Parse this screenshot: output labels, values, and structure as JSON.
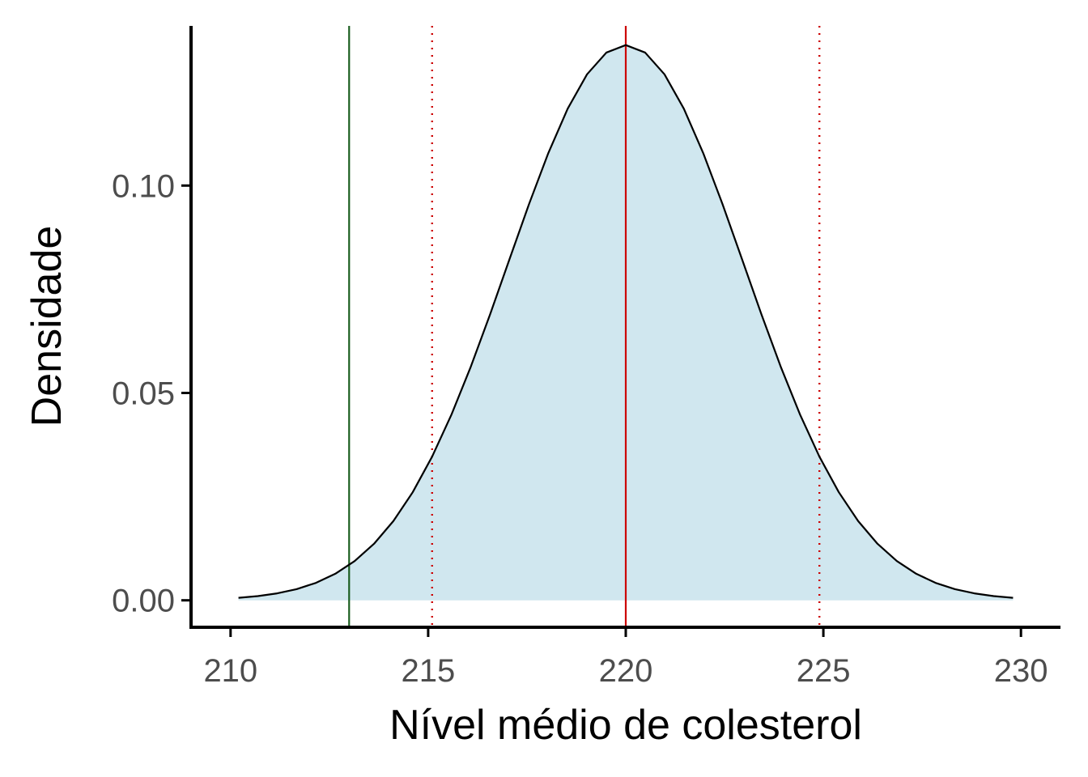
{
  "chart_data": {
    "type": "area",
    "title": "",
    "xlabel": "Nível médio de colesterol",
    "ylabel": "Densidade",
    "xlim": [
      209.0,
      231.0
    ],
    "ylim": [
      -0.0065,
      0.1385
    ],
    "x_ticks": [
      210,
      215,
      220,
      225,
      230
    ],
    "x_tick_labels": [
      "210",
      "215",
      "220",
      "225",
      "230"
    ],
    "y_ticks": [
      0.0,
      0.05,
      0.1
    ],
    "y_tick_labels": [
      "0.00",
      "0.05",
      "0.10"
    ],
    "grid": false,
    "legend": "none",
    "density": {
      "distribution": "normal",
      "mean": 220,
      "sd": 2.98,
      "x_range": [
        210.2,
        229.8
      ],
      "points": 41
    },
    "vlines": [
      {
        "x": 213.0,
        "color": "#1b5e20",
        "style": "solid"
      },
      {
        "x": 215.1,
        "color": "#cc0000",
        "style": "dotted"
      },
      {
        "x": 220.0,
        "color": "#cc0000",
        "style": "solid"
      },
      {
        "x": 224.9,
        "color": "#cc0000",
        "style": "dotted"
      }
    ],
    "colors": {
      "fill": "#d0e7ef",
      "curve": "#000000",
      "axis": "#000000"
    }
  }
}
